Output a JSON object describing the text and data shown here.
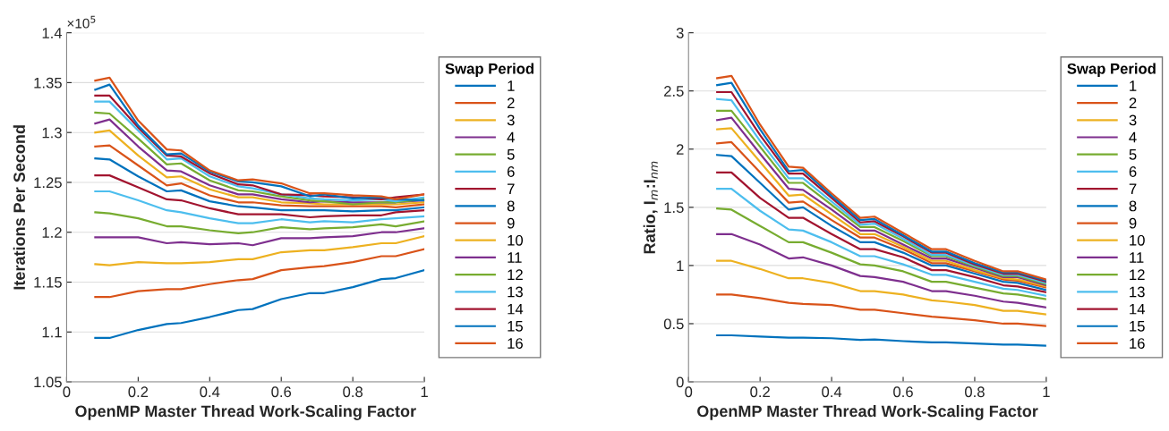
{
  "chart_data": [
    {
      "type": "line",
      "xlabel": "OpenMP Master Thread Work-Scaling Factor",
      "ylabel": "Iterations Per Second",
      "legend_title": "Swap Period",
      "legend": "right",
      "grid": "y",
      "annotations": [
        "×10$^{5}$"
      ],
      "x": [
        0.08,
        0.12,
        0.2,
        0.28,
        0.32,
        0.4,
        0.48,
        0.52,
        0.6,
        0.68,
        0.72,
        0.8,
        0.88,
        0.92,
        1.0
      ],
      "xlim": [
        0,
        1
      ],
      "xticks": [
        0,
        0.2,
        0.4,
        0.6,
        0.8,
        1
      ],
      "ylim": [
        1.05,
        1.4
      ],
      "yticks": [
        1.05,
        1.1,
        1.15,
        1.2,
        1.25,
        1.3,
        1.35,
        1.4
      ],
      "series": [
        {
          "name": "1",
          "color": "#0072bd",
          "values": [
            1.094,
            1.094,
            1.102,
            1.108,
            1.109,
            1.115,
            1.122,
            1.123,
            1.133,
            1.139,
            1.139,
            1.145,
            1.153,
            1.154,
            1.162
          ]
        },
        {
          "name": "2",
          "color": "#d95319",
          "values": [
            1.135,
            1.135,
            1.141,
            1.143,
            1.143,
            1.148,
            1.152,
            1.153,
            1.162,
            1.165,
            1.166,
            1.17,
            1.176,
            1.176,
            1.183
          ]
        },
        {
          "name": "3",
          "color": "#edb120",
          "values": [
            1.168,
            1.167,
            1.17,
            1.169,
            1.169,
            1.17,
            1.173,
            1.173,
            1.18,
            1.182,
            1.182,
            1.185,
            1.189,
            1.189,
            1.196
          ]
        },
        {
          "name": "4",
          "color": "#7e2f8e",
          "values": [
            1.195,
            1.195,
            1.195,
            1.189,
            1.19,
            1.188,
            1.189,
            1.187,
            1.194,
            1.194,
            1.195,
            1.196,
            1.2,
            1.2,
            1.204
          ]
        },
        {
          "name": "5",
          "color": "#77ac30",
          "values": [
            1.22,
            1.219,
            1.214,
            1.206,
            1.206,
            1.202,
            1.199,
            1.2,
            1.205,
            1.203,
            1.204,
            1.205,
            1.208,
            1.206,
            1.211
          ]
        },
        {
          "name": "6",
          "color": "#4dbeee",
          "values": [
            1.241,
            1.241,
            1.232,
            1.222,
            1.22,
            1.214,
            1.209,
            1.209,
            1.213,
            1.21,
            1.211,
            1.21,
            1.213,
            1.214,
            1.216
          ]
        },
        {
          "name": "7",
          "color": "#a2142f",
          "values": [
            1.257,
            1.257,
            1.245,
            1.233,
            1.232,
            1.224,
            1.218,
            1.218,
            1.218,
            1.215,
            1.216,
            1.217,
            1.217,
            1.22,
            1.222
          ]
        },
        {
          "name": "8",
          "color": "#0072bd",
          "values": [
            1.274,
            1.273,
            1.256,
            1.241,
            1.242,
            1.231,
            1.226,
            1.225,
            1.222,
            1.222,
            1.222,
            1.221,
            1.222,
            1.222,
            1.225
          ]
        },
        {
          "name": "9",
          "color": "#d95319",
          "values": [
            1.286,
            1.287,
            1.267,
            1.247,
            1.249,
            1.237,
            1.23,
            1.23,
            1.227,
            1.226,
            1.226,
            1.226,
            1.226,
            1.225,
            1.228
          ]
        },
        {
          "name": "10",
          "color": "#edb120",
          "values": [
            1.3,
            1.302,
            1.277,
            1.255,
            1.256,
            1.243,
            1.235,
            1.235,
            1.23,
            1.229,
            1.228,
            1.228,
            1.228,
            1.228,
            1.23
          ]
        },
        {
          "name": "11",
          "color": "#7e2f8e",
          "values": [
            1.309,
            1.313,
            1.286,
            1.262,
            1.261,
            1.247,
            1.238,
            1.238,
            1.233,
            1.23,
            1.231,
            1.23,
            1.23,
            1.23,
            1.232
          ]
        },
        {
          "name": "12",
          "color": "#77ac30",
          "values": [
            1.32,
            1.319,
            1.294,
            1.268,
            1.269,
            1.252,
            1.242,
            1.241,
            1.236,
            1.232,
            1.231,
            1.228,
            1.23,
            1.23,
            1.233
          ]
        },
        {
          "name": "13",
          "color": "#4dbeee",
          "values": [
            1.331,
            1.331,
            1.302,
            1.273,
            1.274,
            1.256,
            1.246,
            1.244,
            1.238,
            1.234,
            1.233,
            1.232,
            1.233,
            1.231,
            1.235
          ]
        },
        {
          "name": "14",
          "color": "#a2142f",
          "values": [
            1.337,
            1.337,
            1.305,
            1.277,
            1.276,
            1.259,
            1.248,
            1.247,
            1.238,
            1.237,
            1.236,
            1.235,
            1.233,
            1.235,
            1.238
          ]
        },
        {
          "name": "15",
          "color": "#0072bd",
          "values": [
            1.343,
            1.348,
            1.307,
            1.278,
            1.279,
            1.261,
            1.251,
            1.25,
            1.246,
            1.236,
            1.238,
            1.234,
            1.235,
            1.233,
            1.232
          ]
        },
        {
          "name": "16",
          "color": "#d95319",
          "values": [
            1.352,
            1.355,
            1.312,
            1.283,
            1.282,
            1.262,
            1.252,
            1.253,
            1.249,
            1.239,
            1.239,
            1.237,
            1.236,
            1.233,
            1.238
          ]
        }
      ]
    },
    {
      "type": "line",
      "xlabel": "OpenMP Master Thread Work-Scaling Factor",
      "ylabel": "Ratio, I$_{m}$:I$_{nm}$",
      "legend_title": "Swap Period",
      "legend": "right",
      "grid": "y",
      "x": [
        0.08,
        0.12,
        0.2,
        0.28,
        0.32,
        0.4,
        0.48,
        0.52,
        0.6,
        0.68,
        0.72,
        0.8,
        0.88,
        0.92,
        1.0
      ],
      "xlim": [
        0,
        1
      ],
      "xticks": [
        0,
        0.2,
        0.4,
        0.6,
        0.8,
        1
      ],
      "ylim": [
        0,
        3
      ],
      "yticks": [
        0,
        0.5,
        1,
        1.5,
        2,
        2.5,
        3
      ],
      "series": [
        {
          "name": "1",
          "color": "#0072bd",
          "values": [
            0.4,
            0.4,
            0.39,
            0.38,
            0.38,
            0.375,
            0.36,
            0.365,
            0.35,
            0.34,
            0.34,
            0.33,
            0.32,
            0.32,
            0.31
          ]
        },
        {
          "name": "2",
          "color": "#d95319",
          "values": [
            0.75,
            0.75,
            0.72,
            0.68,
            0.67,
            0.66,
            0.62,
            0.62,
            0.59,
            0.56,
            0.55,
            0.53,
            0.5,
            0.5,
            0.48
          ]
        },
        {
          "name": "3",
          "color": "#edb120",
          "values": [
            1.04,
            1.04,
            0.97,
            0.89,
            0.89,
            0.85,
            0.78,
            0.78,
            0.75,
            0.7,
            0.69,
            0.66,
            0.61,
            0.61,
            0.58
          ]
        },
        {
          "name": "4",
          "color": "#7e2f8e",
          "values": [
            1.27,
            1.27,
            1.18,
            1.06,
            1.07,
            1.0,
            0.91,
            0.9,
            0.86,
            0.78,
            0.78,
            0.74,
            0.69,
            0.68,
            0.64
          ]
        },
        {
          "name": "5",
          "color": "#77ac30",
          "values": [
            1.49,
            1.48,
            1.34,
            1.2,
            1.2,
            1.11,
            1.01,
            1.0,
            0.95,
            0.86,
            0.86,
            0.81,
            0.76,
            0.75,
            0.71
          ]
        },
        {
          "name": "6",
          "color": "#4dbeee",
          "values": [
            1.66,
            1.66,
            1.47,
            1.31,
            1.3,
            1.2,
            1.08,
            1.08,
            1.01,
            0.92,
            0.92,
            0.86,
            0.8,
            0.79,
            0.74
          ]
        },
        {
          "name": "7",
          "color": "#a2142f",
          "values": [
            1.8,
            1.8,
            1.58,
            1.41,
            1.41,
            1.27,
            1.14,
            1.14,
            1.07,
            0.96,
            0.96,
            0.9,
            0.83,
            0.82,
            0.77
          ]
        },
        {
          "name": "8",
          "color": "#0072bd",
          "values": [
            1.95,
            1.94,
            1.71,
            1.48,
            1.5,
            1.34,
            1.2,
            1.2,
            1.11,
            1.0,
            1.0,
            0.93,
            0.86,
            0.85,
            0.79
          ]
        },
        {
          "name": "9",
          "color": "#d95319",
          "values": [
            2.05,
            2.06,
            1.8,
            1.54,
            1.55,
            1.39,
            1.24,
            1.24,
            1.14,
            1.02,
            1.02,
            0.95,
            0.88,
            0.87,
            0.81
          ]
        },
        {
          "name": "10",
          "color": "#edb120",
          "values": [
            2.17,
            2.18,
            1.89,
            1.6,
            1.61,
            1.44,
            1.27,
            1.27,
            1.16,
            1.04,
            1.04,
            0.96,
            0.89,
            0.88,
            0.82
          ]
        },
        {
          "name": "11",
          "color": "#7e2f8e",
          "values": [
            2.25,
            2.27,
            1.96,
            1.66,
            1.65,
            1.48,
            1.3,
            1.3,
            1.18,
            1.06,
            1.06,
            0.98,
            0.9,
            0.9,
            0.83
          ]
        },
        {
          "name": "12",
          "color": "#77ac30",
          "values": [
            2.33,
            2.33,
            2.02,
            1.71,
            1.71,
            1.52,
            1.33,
            1.33,
            1.21,
            1.08,
            1.08,
            0.99,
            0.91,
            0.91,
            0.84
          ]
        },
        {
          "name": "13",
          "color": "#4dbeee",
          "values": [
            2.43,
            2.42,
            2.07,
            1.75,
            1.75,
            1.55,
            1.35,
            1.36,
            1.23,
            1.09,
            1.09,
            1.0,
            0.92,
            0.92,
            0.85
          ]
        },
        {
          "name": "14",
          "color": "#a2142f",
          "values": [
            2.49,
            2.49,
            2.12,
            1.79,
            1.79,
            1.58,
            1.37,
            1.38,
            1.25,
            1.11,
            1.11,
            1.01,
            0.93,
            0.93,
            0.86
          ]
        },
        {
          "name": "15",
          "color": "#0072bd",
          "values": [
            2.55,
            2.57,
            2.17,
            1.81,
            1.82,
            1.6,
            1.39,
            1.4,
            1.26,
            1.12,
            1.12,
            1.02,
            0.94,
            0.94,
            0.87
          ]
        },
        {
          "name": "16",
          "color": "#d95319",
          "values": [
            2.61,
            2.63,
            2.21,
            1.85,
            1.84,
            1.62,
            1.41,
            1.42,
            1.28,
            1.14,
            1.14,
            1.04,
            0.95,
            0.95,
            0.88
          ]
        }
      ]
    }
  ]
}
